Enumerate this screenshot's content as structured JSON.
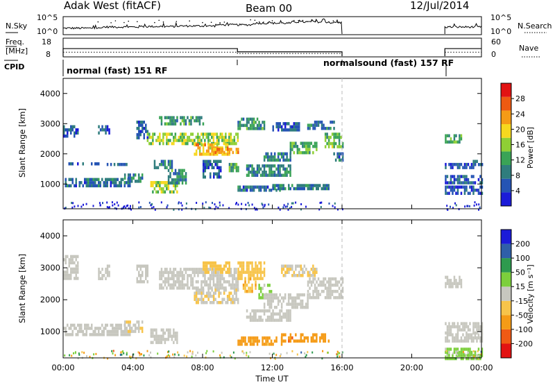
{
  "header": {
    "station": "Adak West (fitACF)",
    "beam": "Beam 00",
    "date": "12/Jul/2014"
  },
  "chart_data": [
    {
      "type": "line",
      "name": "noise_panel",
      "left_label": "N.Sky",
      "right_label": "N.Search",
      "left_ticks": [
        "10^5",
        "10^0"
      ],
      "right_ticks": [
        "10^5",
        "10^0"
      ],
      "x": [
        "00:00",
        "02:00",
        "04:00",
        "06:00",
        "08:00",
        "10:00",
        "12:00",
        "14:00",
        "16:00",
        "22:00",
        "23:00",
        "24:00"
      ],
      "series": [
        {
          "name": "N.Sky",
          "values": [
            0.35,
            0.42,
            0.45,
            0.48,
            0.55,
            0.65,
            0.72,
            0.68,
            0.55,
            0.42,
            0.42,
            0.4
          ]
        }
      ],
      "ylim": [
        0,
        1
      ]
    },
    {
      "type": "line",
      "name": "freq_panel",
      "left_label": "Freq.\n[MHz]",
      "right_label": "Nave",
      "left_ticks": [
        "18",
        "8"
      ],
      "right_ticks": [
        "60",
        "0"
      ],
      "x": [
        "00:00",
        "10:00",
        "10:00",
        "16:00",
        "22:00",
        "24:00"
      ],
      "series": [
        {
          "name": "Freq.",
          "values": [
            12.2,
            12.2,
            10.4,
            10.4,
            12.2,
            12.2
          ]
        },
        {
          "name": "Nave",
          "values": [
            25,
            25,
            18,
            18,
            25,
            25
          ]
        }
      ]
    },
    {
      "type": "table",
      "name": "cpid",
      "label": "CPID",
      "entries": [
        "normal (fast) 151 RF",
        "normalsound (fast) 157 RF"
      ]
    },
    {
      "type": "heatmap",
      "name": "power",
      "ylabel": "Slant Range [km]",
      "yticks": [
        "1000",
        "2000",
        "3000",
        "4000"
      ],
      "ylim": [
        180,
        4500
      ],
      "xlim": [
        0,
        24
      ],
      "colorbar": {
        "label": "Power [dB]",
        "ticks": [
          "4",
          "8",
          "12",
          "16",
          "20",
          "24",
          "28"
        ],
        "range": [
          0,
          30
        ],
        "colors": [
          "#1b1bd8",
          "#2554b4",
          "#2f7d7d",
          "#3aa356",
          "#8fcf35",
          "#f7d81e",
          "#f59b16",
          "#ee5a12",
          "#e21212"
        ]
      },
      "blobs": [
        {
          "t": [
            0.0,
            0.8
          ],
          "r": [
            2600,
            2950
          ],
          "v": 6
        },
        {
          "t": [
            2.0,
            2.6
          ],
          "r": [
            2650,
            2950
          ],
          "v": 5
        },
        {
          "t": [
            0.0,
            2.0
          ],
          "r": [
            1650,
            1720
          ],
          "v": 5
        },
        {
          "t": [
            2.5,
            3.6
          ],
          "r": [
            1600,
            1700
          ],
          "v": 6
        },
        {
          "t": [
            0.0,
            3.8
          ],
          "r": [
            900,
            1200
          ],
          "v": 7
        },
        {
          "t": [
            3.5,
            4.5
          ],
          "r": [
            1050,
            1350
          ],
          "v": 9
        },
        {
          "t": [
            4.2,
            4.8
          ],
          "r": [
            2550,
            3100
          ],
          "v": 6
        },
        {
          "t": [
            5.0,
            6.5
          ],
          "r": [
            700,
            1100
          ],
          "v": 16
        },
        {
          "t": [
            5.2,
            6.2
          ],
          "r": [
            1550,
            1800
          ],
          "v": 8
        },
        {
          "t": [
            6.0,
            7.0
          ],
          "r": [
            1050,
            1500
          ],
          "v": 10
        },
        {
          "t": [
            5.5,
            8.0
          ],
          "r": [
            2950,
            3250
          ],
          "v": 10
        },
        {
          "t": [
            4.8,
            10.0
          ],
          "r": [
            2300,
            2700
          ],
          "v": 15
        },
        {
          "t": [
            7.5,
            9.5
          ],
          "r": [
            1950,
            2350
          ],
          "v": 20
        },
        {
          "t": [
            8.5,
            10.0
          ],
          "r": [
            2000,
            2200
          ],
          "v": 22
        },
        {
          "t": [
            8.0,
            9.0
          ],
          "r": [
            1200,
            1800
          ],
          "v": 6
        },
        {
          "t": [
            9.5,
            10.0
          ],
          "r": [
            1400,
            1700
          ],
          "v": 12
        },
        {
          "t": [
            10.0,
            11.5
          ],
          "r": [
            2800,
            3200
          ],
          "v": 10
        },
        {
          "t": [
            10.5,
            13.0
          ],
          "r": [
            1250,
            1650
          ],
          "v": 9
        },
        {
          "t": [
            11.5,
            13.0
          ],
          "r": [
            1750,
            2050
          ],
          "v": 8
        },
        {
          "t": [
            10.0,
            12.5
          ],
          "r": [
            750,
            950
          ],
          "v": 7
        },
        {
          "t": [
            12.0,
            15.2
          ],
          "r": [
            850,
            1000
          ],
          "v": 8
        },
        {
          "t": [
            12.0,
            13.5
          ],
          "r": [
            2800,
            3050
          ],
          "v": 6
        },
        {
          "t": [
            13.0,
            14.5
          ],
          "r": [
            2000,
            2400
          ],
          "v": 12
        },
        {
          "t": [
            14.0,
            15.5
          ],
          "r": [
            2800,
            3100
          ],
          "v": 8
        },
        {
          "t": [
            15.0,
            16.0
          ],
          "r": [
            2250,
            2700
          ],
          "v": 13
        },
        {
          "t": [
            15.5,
            16.0
          ],
          "r": [
            1800,
            2050
          ],
          "v": 7
        },
        {
          "t": [
            21.9,
            22.8
          ],
          "r": [
            2400,
            2650
          ],
          "v": 11
        },
        {
          "t": [
            21.9,
            23.5
          ],
          "r": [
            1550,
            1700
          ],
          "v": 5
        },
        {
          "t": [
            23.5,
            24.0
          ],
          "r": [
            1600,
            1800
          ],
          "v": 6
        },
        {
          "t": [
            21.9,
            24.0
          ],
          "r": [
            1050,
            1300
          ],
          "v": 6
        },
        {
          "t": [
            21.9,
            24.0
          ],
          "r": [
            700,
            950
          ],
          "v": 5
        }
      ]
    },
    {
      "type": "heatmap",
      "name": "velocity",
      "ylabel": "Slant Range [km]",
      "yticks": [
        "1000",
        "2000",
        "3000",
        "4000"
      ],
      "ylim": [
        180,
        4500
      ],
      "xlim": [
        0,
        24
      ],
      "colorbar": {
        "label": "Velocity [m s⁻¹]",
        "ticks": [
          "-200",
          "-100",
          "-50",
          "-15",
          "15",
          "50",
          "100",
          "200"
        ],
        "range": [
          -250,
          250
        ],
        "colors": [
          "#e21212",
          "#f05a14",
          "#f59b16",
          "#f7c44a",
          "#c7c7bf",
          "#7ccf3c",
          "#2e9a4e",
          "#2f5fa8",
          "#1b1bd8"
        ]
      },
      "blobs": [
        {
          "t": [
            0.0,
            0.8
          ],
          "r": [
            2650,
            3400
          ],
          "v": 0
        },
        {
          "t": [
            2.0,
            2.6
          ],
          "r": [
            2700,
            3100
          ],
          "v": 0
        },
        {
          "t": [
            0.0,
            3.8
          ],
          "r": [
            900,
            1250
          ],
          "v": 0
        },
        {
          "t": [
            3.5,
            4.5
          ],
          "r": [
            1050,
            1350
          ],
          "v": -20
        },
        {
          "t": [
            4.2,
            4.8
          ],
          "r": [
            2600,
            3100
          ],
          "v": 0
        },
        {
          "t": [
            5.0,
            6.5
          ],
          "r": [
            700,
            1100
          ],
          "v": 0
        },
        {
          "t": [
            5.5,
            10.0
          ],
          "r": [
            2400,
            3000
          ],
          "v": 0
        },
        {
          "t": [
            7.5,
            10.0
          ],
          "r": [
            1900,
            2350
          ],
          "v": -20
        },
        {
          "t": [
            8.0,
            9.5
          ],
          "r": [
            2900,
            3200
          ],
          "v": -60
        },
        {
          "t": [
            10.0,
            11.5
          ],
          "r": [
            2700,
            3200
          ],
          "v": -60
        },
        {
          "t": [
            10.3,
            11.0
          ],
          "r": [
            2300,
            2700
          ],
          "v": -70
        },
        {
          "t": [
            11.2,
            11.9
          ],
          "r": [
            2100,
            2500
          ],
          "v": 40
        },
        {
          "t": [
            10.5,
            13.0
          ],
          "r": [
            1350,
            1700
          ],
          "v": 0
        },
        {
          "t": [
            11.5,
            14.0
          ],
          "r": [
            1800,
            2200
          ],
          "v": 0
        },
        {
          "t": [
            10.0,
            12.5
          ],
          "r": [
            650,
            850
          ],
          "v": -100
        },
        {
          "t": [
            12.5,
            15.2
          ],
          "r": [
            700,
            950
          ],
          "v": -120
        },
        {
          "t": [
            12.5,
            14.5
          ],
          "r": [
            2800,
            3100
          ],
          "v": -30
        },
        {
          "t": [
            14.0,
            16.0
          ],
          "r": [
            2100,
            2700
          ],
          "v": 0
        },
        {
          "t": [
            21.9,
            22.8
          ],
          "r": [
            2400,
            2750
          ],
          "v": 0
        },
        {
          "t": [
            21.9,
            24.0
          ],
          "r": [
            1000,
            1300
          ],
          "v": 0
        },
        {
          "t": [
            21.9,
            24.0
          ],
          "r": [
            700,
            950
          ],
          "v": 0
        },
        {
          "t": [
            21.9,
            24.0
          ],
          "r": [
            200,
            500
          ],
          "v": 40
        }
      ]
    }
  ],
  "xaxis": {
    "label": "Time UT",
    "ticks": [
      "00:00",
      "04:00",
      "08:00",
      "12:00",
      "16:00",
      "20:00",
      "00:00"
    ]
  }
}
